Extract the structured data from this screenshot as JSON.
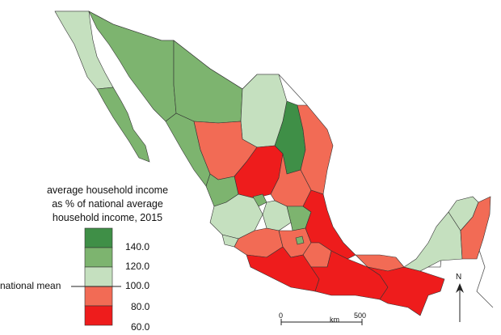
{
  "legend": {
    "title_lines": [
      "average household income",
      "as % of national average",
      "household income, 2015"
    ],
    "ticks": [
      "140.0",
      "120.0",
      "100.0",
      "80.0",
      "60.0"
    ],
    "national_mean_label": "national mean",
    "classes": [
      {
        "range": "120-140+",
        "color": "#3f8f47"
      },
      {
        "range": "120-140",
        "color": "#7db46f"
      },
      {
        "range": "100-120",
        "color": "#c5e0bf"
      },
      {
        "range": "80-100",
        "color": "#f26b55"
      },
      {
        "range": "60-80",
        "color": "#ee1c1c"
      }
    ]
  },
  "scale_bar": {
    "start": "0",
    "unit": "km",
    "end": "500"
  },
  "north_arrow": {
    "label": "N"
  },
  "colors": {
    "dark_green": "#3f8f47",
    "mid_green": "#7db46f",
    "light_green": "#c5e0bf",
    "salmon": "#f26b55",
    "red": "#ee1c1c",
    "border": "#333333",
    "neighbor_outline": "#555555"
  }
}
